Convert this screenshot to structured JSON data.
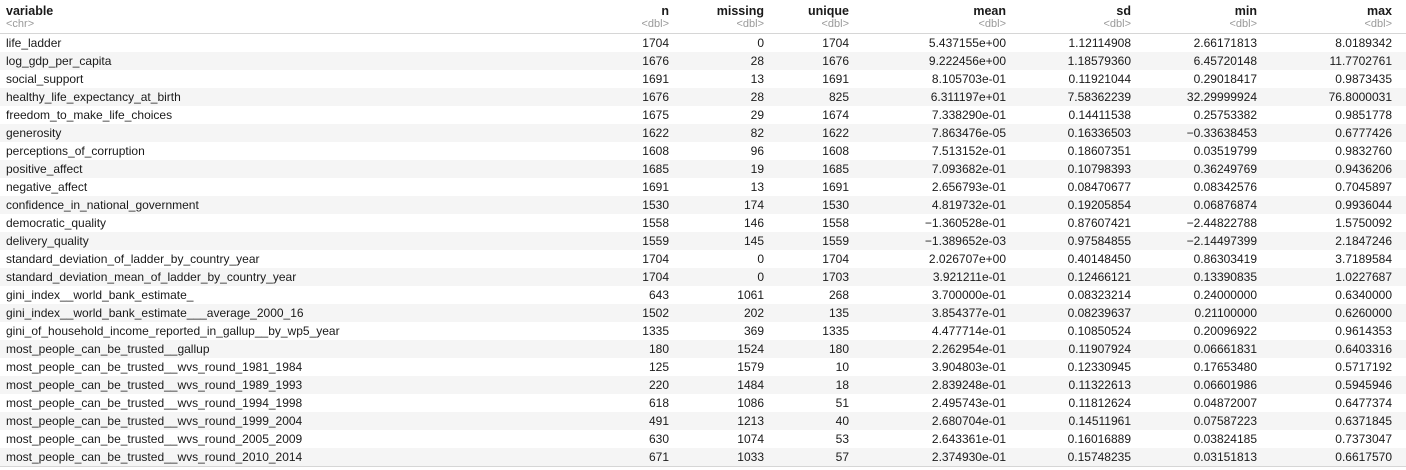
{
  "columns": [
    {
      "key": "variable",
      "label": "variable",
      "type": "<chr>",
      "align": "l"
    },
    {
      "key": "n",
      "label": "n",
      "type": "<dbl>",
      "align": "r"
    },
    {
      "key": "missing",
      "label": "missing",
      "type": "<dbl>",
      "align": "r"
    },
    {
      "key": "unique",
      "label": "unique",
      "type": "<dbl>",
      "align": "r"
    },
    {
      "key": "mean",
      "label": "mean",
      "type": "<dbl>",
      "align": "r"
    },
    {
      "key": "sd",
      "label": "sd",
      "type": "<dbl>",
      "align": "r"
    },
    {
      "key": "min",
      "label": "min",
      "type": "<dbl>",
      "align": "r"
    },
    {
      "key": "max",
      "label": "max",
      "type": "<dbl>",
      "align": "r"
    }
  ],
  "rows": [
    [
      "life_ladder",
      "1704",
      "0",
      "1704",
      "5.437155e+00",
      "1.12114908",
      "2.66171813",
      "8.0189342"
    ],
    [
      "log_gdp_per_capita",
      "1676",
      "28",
      "1676",
      "9.222456e+00",
      "1.18579360",
      "6.45720148",
      "11.7702761"
    ],
    [
      "social_support",
      "1691",
      "13",
      "1691",
      "8.105703e-01",
      "0.11921044",
      "0.29018417",
      "0.9873435"
    ],
    [
      "healthy_life_expectancy_at_birth",
      "1676",
      "28",
      "825",
      "6.311197e+01",
      "7.58362239",
      "32.29999924",
      "76.8000031"
    ],
    [
      "freedom_to_make_life_choices",
      "1675",
      "29",
      "1674",
      "7.338290e-01",
      "0.14411538",
      "0.25753382",
      "0.9851778"
    ],
    [
      "generosity",
      "1622",
      "82",
      "1622",
      "7.863476e-05",
      "0.16336503",
      "−0.33638453",
      "0.6777426"
    ],
    [
      "perceptions_of_corruption",
      "1608",
      "96",
      "1608",
      "7.513152e-01",
      "0.18607351",
      "0.03519799",
      "0.9832760"
    ],
    [
      "positive_affect",
      "1685",
      "19",
      "1685",
      "7.093682e-01",
      "0.10798393",
      "0.36249769",
      "0.9436206"
    ],
    [
      "negative_affect",
      "1691",
      "13",
      "1691",
      "2.656793e-01",
      "0.08470677",
      "0.08342576",
      "0.7045897"
    ],
    [
      "confidence_in_national_government",
      "1530",
      "174",
      "1530",
      "4.819732e-01",
      "0.19205854",
      "0.06876874",
      "0.9936044"
    ],
    [
      "democratic_quality",
      "1558",
      "146",
      "1558",
      "−1.360528e-01",
      "0.87607421",
      "−2.44822788",
      "1.5750092"
    ],
    [
      "delivery_quality",
      "1559",
      "145",
      "1559",
      "−1.389652e-03",
      "0.97584855",
      "−2.14497399",
      "2.1847246"
    ],
    [
      "standard_deviation_of_ladder_by_country_year",
      "1704",
      "0",
      "1704",
      "2.026707e+00",
      "0.40148450",
      "0.86303419",
      "3.7189584"
    ],
    [
      "standard_deviation_mean_of_ladder_by_country_year",
      "1704",
      "0",
      "1703",
      "3.921211e-01",
      "0.12466121",
      "0.13390835",
      "1.0227687"
    ],
    [
      "gini_index__world_bank_estimate_",
      "643",
      "1061",
      "268",
      "3.700000e-01",
      "0.08323214",
      "0.24000000",
      "0.6340000"
    ],
    [
      "gini_index__world_bank_estimate___average_2000_16",
      "1502",
      "202",
      "135",
      "3.854377e-01",
      "0.08239637",
      "0.21100000",
      "0.6260000"
    ],
    [
      "gini_of_household_income_reported_in_gallup__by_wp5_year",
      "1335",
      "369",
      "1335",
      "4.477714e-01",
      "0.10850524",
      "0.20096922",
      "0.9614353"
    ],
    [
      "most_people_can_be_trusted__gallup",
      "180",
      "1524",
      "180",
      "2.262954e-01",
      "0.11907924",
      "0.06661831",
      "0.6403316"
    ],
    [
      "most_people_can_be_trusted__wvs_round_1981_1984",
      "125",
      "1579",
      "10",
      "3.904803e-01",
      "0.12330945",
      "0.17653480",
      "0.5717192"
    ],
    [
      "most_people_can_be_trusted__wvs_round_1989_1993",
      "220",
      "1484",
      "18",
      "2.839248e-01",
      "0.11322613",
      "0.06601986",
      "0.5945946"
    ],
    [
      "most_people_can_be_trusted__wvs_round_1994_1998",
      "618",
      "1086",
      "51",
      "2.495743e-01",
      "0.11812624",
      "0.04872007",
      "0.6477374"
    ],
    [
      "most_people_can_be_trusted__wvs_round_1999_2004",
      "491",
      "1213",
      "40",
      "2.680704e-01",
      "0.14511961",
      "0.07587223",
      "0.6371845"
    ],
    [
      "most_people_can_be_trusted__wvs_round_2005_2009",
      "630",
      "1074",
      "53",
      "2.643361e-01",
      "0.16016889",
      "0.03824185",
      "0.7373047"
    ],
    [
      "most_people_can_be_trusted__wvs_round_2010_2014",
      "671",
      "1033",
      "57",
      "2.374930e-01",
      "0.15748235",
      "0.03151813",
      "0.6617570"
    ]
  ]
}
